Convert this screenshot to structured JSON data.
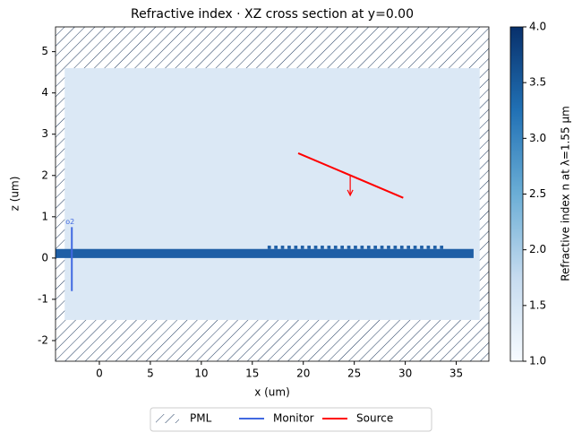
{
  "chart_data": {
    "type": "geometry",
    "title": "Refractive index · XZ cross section at y=0.00",
    "xlabel": "x (um)",
    "ylabel": "z (um)",
    "xlim": [
      -4.3,
      38.2
    ],
    "ylim": [
      -2.5,
      5.6
    ],
    "xticks": [
      0,
      5,
      10,
      15,
      20,
      25,
      30,
      35
    ],
    "yticks": [
      -2,
      -1,
      0,
      1,
      2,
      3,
      4,
      5
    ],
    "colorbar": {
      "label": "Refractive index n at λ=1.55 μm",
      "lim": [
        1,
        4
      ],
      "ticks": [
        {
          "value": 1,
          "label": "1.0"
        },
        {
          "value": 1.5,
          "label": "1.5"
        },
        {
          "value": 2,
          "label": "2.0"
        },
        {
          "value": 2.5,
          "label": "2.5"
        },
        {
          "value": 3,
          "label": "3.0"
        },
        {
          "value": 3.5,
          "label": "3.5"
        },
        {
          "value": 4,
          "label": "4.0"
        }
      ]
    },
    "cladding": {
      "x": [
        -3.4,
        37.3
      ],
      "z": [
        -1.5,
        4.6
      ],
      "color": "#dbe8f5"
    },
    "waveguide": {
      "x": [
        -4.3,
        36.7
      ],
      "z": [
        0,
        0.22
      ],
      "color": "#1f5fa6"
    },
    "grating": {
      "x": [
        16.5,
        34.3
      ],
      "z": [
        0.22,
        0.3
      ],
      "period": 0.65,
      "color": "#1f5fa6"
    },
    "monitor": {
      "x": [
        -2.7,
        -2.7
      ],
      "z": [
        0.75,
        -0.8
      ],
      "label": "o2",
      "color": "#4169e1"
    },
    "source": {
      "x": [
        19.5,
        29.8
      ],
      "z": [
        2.54,
        1.46
      ],
      "arrow_x": [
        24.6,
        24.6
      ],
      "arrow_z": [
        2.0,
        1.52
      ],
      "color": "#ff0000"
    },
    "legend": [
      "PML",
      "Monitor",
      "Source"
    ]
  }
}
